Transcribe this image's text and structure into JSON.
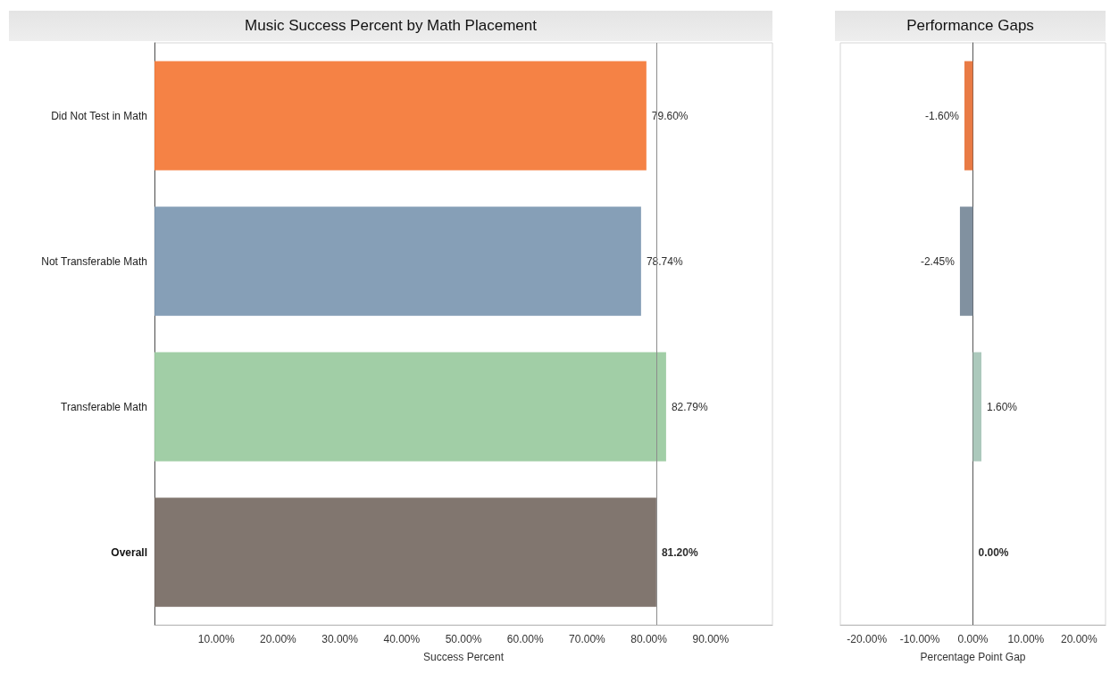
{
  "chart_data": [
    {
      "type": "bar",
      "orientation": "horizontal",
      "title": "Music Success Percent by Math Placement",
      "xlabel": "Success Percent",
      "categories": [
        "Did Not Test in Math",
        "Not Transferable Math",
        "Transferable Math",
        "Overall"
      ],
      "values": [
        79.6,
        78.74,
        82.79,
        81.2
      ],
      "colors": [
        "#f47b3b",
        "#7f9ab3",
        "#9ccba1",
        "#7a6f67"
      ],
      "value_labels": [
        "79.60%",
        "78.74%",
        "82.79%",
        "81.20%"
      ],
      "xlim": [
        0,
        100
      ],
      "xticks": [
        {
          "value": 10,
          "label": "10.00%"
        },
        {
          "value": 20,
          "label": "20.00%"
        },
        {
          "value": 30,
          "label": "30.00%"
        },
        {
          "value": 40,
          "label": "40.00%"
        },
        {
          "value": 50,
          "label": "50.00%"
        },
        {
          "value": 60,
          "label": "60.00%"
        },
        {
          "value": 70,
          "label": "70.00%"
        },
        {
          "value": 80,
          "label": "80.00%"
        },
        {
          "value": 90,
          "label": "90.00%"
        }
      ],
      "ref_lines": [
        {
          "axis": "x",
          "value": 81.2,
          "color": "#8c8c8c"
        }
      ]
    },
    {
      "type": "bar",
      "orientation": "horizontal",
      "title": "Performance Gaps",
      "xlabel": "Percentage Point Gap",
      "categories": [
        null,
        null,
        null,
        null
      ],
      "values": [
        -1.6,
        -2.45,
        1.6,
        0
      ],
      "colors": [
        "#e8743b",
        "#7a8b9b",
        "#a8c6b8",
        "#7a6f67"
      ],
      "value_labels": [
        "-1.60%",
        "-2.45%",
        "1.60%",
        "0.00%"
      ],
      "xlim": [
        -25,
        25
      ],
      "xticks": [
        {
          "value": -20,
          "label": "-20.00%"
        },
        {
          "value": -10,
          "label": "-10.00%"
        },
        {
          "value": 0,
          "label": "0.00%"
        },
        {
          "value": 10,
          "label": "10.00%"
        },
        {
          "value": 20,
          "label": "20.00%"
        }
      ]
    }
  ]
}
